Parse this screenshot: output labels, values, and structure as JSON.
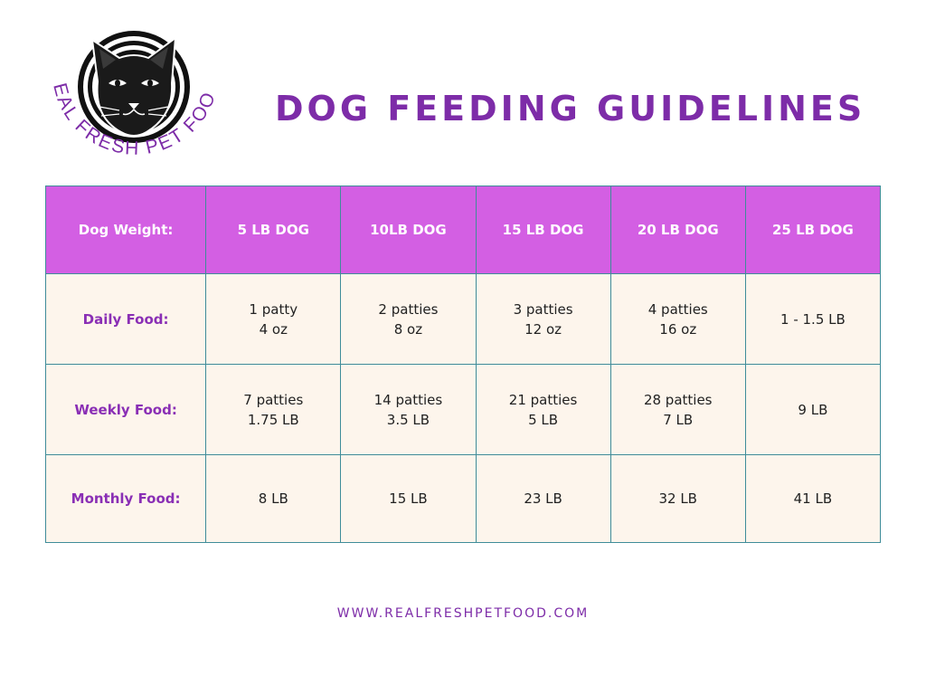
{
  "brand": {
    "logo_text": "REAL FRESH PET FOOD",
    "accent_color": "#7d2ca8",
    "icon": "cat-face-icon"
  },
  "title": "DOG FEEDING GUIDELINES",
  "table": {
    "header_color": "#d35fe3",
    "body_color": "#fdf5ec",
    "header": {
      "label": "Dog Weight:",
      "columns": [
        "5 LB DOG",
        "10LB DOG",
        "15 LB DOG",
        "20 LB DOG",
        "25 LB DOG"
      ]
    },
    "rows": [
      {
        "label": "Daily Food:",
        "cells": [
          [
            "1 patty",
            "4 oz"
          ],
          [
            "2 patties",
            "8 oz"
          ],
          [
            "3 patties",
            "12 oz"
          ],
          [
            "4 patties",
            "16 oz"
          ],
          [
            "1 - 1.5 LB"
          ]
        ]
      },
      {
        "label": "Weekly Food:",
        "cells": [
          [
            "7 patties",
            "1.75 LB"
          ],
          [
            "14 patties",
            "3.5 LB"
          ],
          [
            "21 patties",
            "5 LB"
          ],
          [
            "28 patties",
            "7 LB"
          ],
          [
            "9 LB"
          ]
        ]
      },
      {
        "label": "Monthly Food:",
        "cells": [
          [
            "8 LB"
          ],
          [
            "15 LB"
          ],
          [
            "23 LB"
          ],
          [
            "32 LB"
          ],
          [
            "41 LB"
          ]
        ]
      }
    ]
  },
  "footer": {
    "website": "WWW.REALFRESHPETFOOD.COM"
  }
}
